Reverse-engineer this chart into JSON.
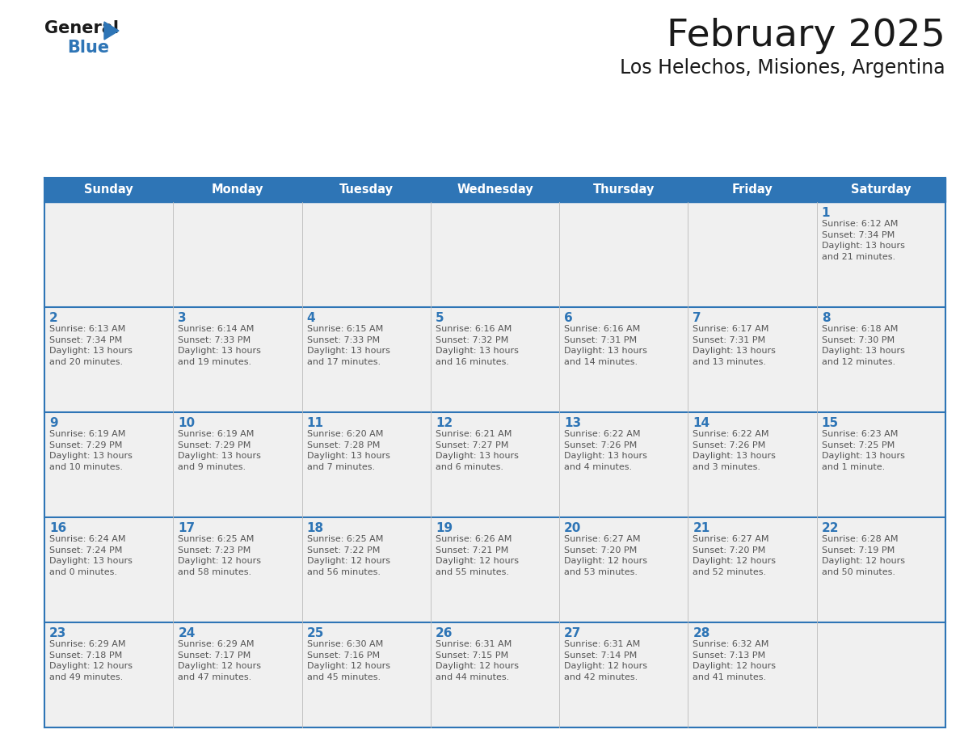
{
  "title": "February 2025",
  "subtitle": "Los Helechos, Misiones, Argentina",
  "header_bg": "#2E75B6",
  "header_text_color": "#FFFFFF",
  "day_names": [
    "Sunday",
    "Monday",
    "Tuesday",
    "Wednesday",
    "Thursday",
    "Friday",
    "Saturday"
  ],
  "cell_bg": "#F0F0F0",
  "cell_border_color": "#2E75B6",
  "day_number_color": "#2E75B6",
  "info_text_color": "#555555",
  "title_color": "#1A1A1A",
  "logo_general_color": "#1A1A1A",
  "logo_blue_color": "#2E75B6",
  "logo_triangle_color": "#2E75B6",
  "calendar": [
    [
      {
        "day": null,
        "info": ""
      },
      {
        "day": null,
        "info": ""
      },
      {
        "day": null,
        "info": ""
      },
      {
        "day": null,
        "info": ""
      },
      {
        "day": null,
        "info": ""
      },
      {
        "day": null,
        "info": ""
      },
      {
        "day": 1,
        "info": "Sunrise: 6:12 AM\nSunset: 7:34 PM\nDaylight: 13 hours\nand 21 minutes."
      }
    ],
    [
      {
        "day": 2,
        "info": "Sunrise: 6:13 AM\nSunset: 7:34 PM\nDaylight: 13 hours\nand 20 minutes."
      },
      {
        "day": 3,
        "info": "Sunrise: 6:14 AM\nSunset: 7:33 PM\nDaylight: 13 hours\nand 19 minutes."
      },
      {
        "day": 4,
        "info": "Sunrise: 6:15 AM\nSunset: 7:33 PM\nDaylight: 13 hours\nand 17 minutes."
      },
      {
        "day": 5,
        "info": "Sunrise: 6:16 AM\nSunset: 7:32 PM\nDaylight: 13 hours\nand 16 minutes."
      },
      {
        "day": 6,
        "info": "Sunrise: 6:16 AM\nSunset: 7:31 PM\nDaylight: 13 hours\nand 14 minutes."
      },
      {
        "day": 7,
        "info": "Sunrise: 6:17 AM\nSunset: 7:31 PM\nDaylight: 13 hours\nand 13 minutes."
      },
      {
        "day": 8,
        "info": "Sunrise: 6:18 AM\nSunset: 7:30 PM\nDaylight: 13 hours\nand 12 minutes."
      }
    ],
    [
      {
        "day": 9,
        "info": "Sunrise: 6:19 AM\nSunset: 7:29 PM\nDaylight: 13 hours\nand 10 minutes."
      },
      {
        "day": 10,
        "info": "Sunrise: 6:19 AM\nSunset: 7:29 PM\nDaylight: 13 hours\nand 9 minutes."
      },
      {
        "day": 11,
        "info": "Sunrise: 6:20 AM\nSunset: 7:28 PM\nDaylight: 13 hours\nand 7 minutes."
      },
      {
        "day": 12,
        "info": "Sunrise: 6:21 AM\nSunset: 7:27 PM\nDaylight: 13 hours\nand 6 minutes."
      },
      {
        "day": 13,
        "info": "Sunrise: 6:22 AM\nSunset: 7:26 PM\nDaylight: 13 hours\nand 4 minutes."
      },
      {
        "day": 14,
        "info": "Sunrise: 6:22 AM\nSunset: 7:26 PM\nDaylight: 13 hours\nand 3 minutes."
      },
      {
        "day": 15,
        "info": "Sunrise: 6:23 AM\nSunset: 7:25 PM\nDaylight: 13 hours\nand 1 minute."
      }
    ],
    [
      {
        "day": 16,
        "info": "Sunrise: 6:24 AM\nSunset: 7:24 PM\nDaylight: 13 hours\nand 0 minutes."
      },
      {
        "day": 17,
        "info": "Sunrise: 6:25 AM\nSunset: 7:23 PM\nDaylight: 12 hours\nand 58 minutes."
      },
      {
        "day": 18,
        "info": "Sunrise: 6:25 AM\nSunset: 7:22 PM\nDaylight: 12 hours\nand 56 minutes."
      },
      {
        "day": 19,
        "info": "Sunrise: 6:26 AM\nSunset: 7:21 PM\nDaylight: 12 hours\nand 55 minutes."
      },
      {
        "day": 20,
        "info": "Sunrise: 6:27 AM\nSunset: 7:20 PM\nDaylight: 12 hours\nand 53 minutes."
      },
      {
        "day": 21,
        "info": "Sunrise: 6:27 AM\nSunset: 7:20 PM\nDaylight: 12 hours\nand 52 minutes."
      },
      {
        "day": 22,
        "info": "Sunrise: 6:28 AM\nSunset: 7:19 PM\nDaylight: 12 hours\nand 50 minutes."
      }
    ],
    [
      {
        "day": 23,
        "info": "Sunrise: 6:29 AM\nSunset: 7:18 PM\nDaylight: 12 hours\nand 49 minutes."
      },
      {
        "day": 24,
        "info": "Sunrise: 6:29 AM\nSunset: 7:17 PM\nDaylight: 12 hours\nand 47 minutes."
      },
      {
        "day": 25,
        "info": "Sunrise: 6:30 AM\nSunset: 7:16 PM\nDaylight: 12 hours\nand 45 minutes."
      },
      {
        "day": 26,
        "info": "Sunrise: 6:31 AM\nSunset: 7:15 PM\nDaylight: 12 hours\nand 44 minutes."
      },
      {
        "day": 27,
        "info": "Sunrise: 6:31 AM\nSunset: 7:14 PM\nDaylight: 12 hours\nand 42 minutes."
      },
      {
        "day": 28,
        "info": "Sunrise: 6:32 AM\nSunset: 7:13 PM\nDaylight: 12 hours\nand 41 minutes."
      },
      {
        "day": null,
        "info": ""
      }
    ]
  ]
}
